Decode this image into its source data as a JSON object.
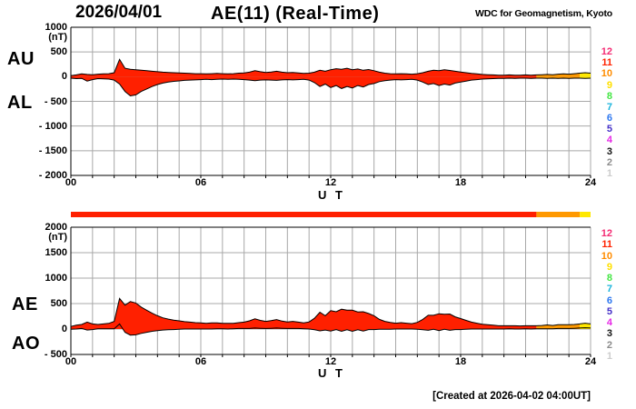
{
  "title": {
    "date": "2026/04/01",
    "main": "AE(11) (Real-Time)",
    "source": "WDC for Geomagnetism, Kyoto"
  },
  "footer": {
    "created": "[Created at 2026-04-02 04:00UT]"
  },
  "colors": {
    "grid": "#A8A8A8",
    "axis": "#000000",
    "fill_red": "#FF2000",
    "fill_orange": "#FF9900",
    "fill_yellow": "#FFE800"
  },
  "legend": {
    "items": [
      {
        "label": "12",
        "color": "#F42C74"
      },
      {
        "label": "11",
        "color": "#FF2200"
      },
      {
        "label": "10",
        "color": "#FF8C00"
      },
      {
        "label": "9",
        "color": "#FFE000"
      },
      {
        "label": "8",
        "color": "#44E644"
      },
      {
        "label": "7",
        "color": "#19B4DC"
      },
      {
        "label": "6",
        "color": "#2E78F0"
      },
      {
        "label": "5",
        "color": "#4632C8"
      },
      {
        "label": "4",
        "color": "#E628E6"
      },
      {
        "label": "3",
        "color": "#141414"
      },
      {
        "label": "2",
        "color": "#8C8C8C"
      },
      {
        "label": "1",
        "color": "#CDCDCD"
      }
    ]
  },
  "quality_bar": {
    "segments": [
      {
        "from": 0,
        "to": 21.5,
        "color": "#FF2000"
      },
      {
        "from": 21.5,
        "to": 23.5,
        "color": "#FF9900"
      },
      {
        "from": 23.5,
        "to": 24,
        "color": "#FFE800"
      }
    ]
  },
  "chart_data": [
    {
      "type": "area",
      "title": "AU / AL real-time indices",
      "panel_labels": [
        "AU",
        "AL"
      ],
      "unit": "(nT)",
      "xlabel": "U T",
      "ylim": [
        -2000,
        1000
      ],
      "xlim": [
        0,
        24
      ],
      "grid": true,
      "yticks": [
        {
          "v": 1000,
          "label": "1000"
        },
        {
          "v": 500,
          "label": "500"
        },
        {
          "v": 0,
          "label": "0"
        },
        {
          "v": -500,
          "label": "- 500"
        },
        {
          "v": -1000,
          "label": "- 1000"
        },
        {
          "v": -1500,
          "label": "- 1500"
        },
        {
          "v": -2000,
          "label": "- 2000"
        }
      ],
      "xticks": [
        {
          "v": 0,
          "label": "00"
        },
        {
          "v": 6,
          "label": "06"
        },
        {
          "v": 12,
          "label": "12"
        },
        {
          "v": 18,
          "label": "18"
        },
        {
          "v": 24,
          "label": "24"
        }
      ],
      "color_segments": [
        {
          "from": 0,
          "to": 21.5,
          "color": "#FF2000"
        },
        {
          "from": 21.5,
          "to": 23.5,
          "color": "#FF9900"
        },
        {
          "from": 23.5,
          "to": 24,
          "color": "#FFE800"
        }
      ],
      "x": [
        0,
        0.25,
        0.5,
        0.75,
        1,
        1.25,
        1.5,
        1.75,
        2,
        2.25,
        2.5,
        2.75,
        3,
        3.25,
        3.5,
        3.75,
        4,
        4.25,
        4.5,
        4.75,
        5,
        5.25,
        5.5,
        5.75,
        6,
        6.25,
        6.5,
        6.75,
        7,
        7.25,
        7.5,
        7.75,
        8,
        8.25,
        8.5,
        8.75,
        9,
        9.25,
        9.5,
        9.75,
        10,
        10.25,
        10.5,
        10.75,
        11,
        11.25,
        11.5,
        11.75,
        12,
        12.25,
        12.5,
        12.75,
        13,
        13.25,
        13.5,
        13.75,
        14,
        14.25,
        14.5,
        14.75,
        15,
        15.25,
        15.5,
        15.75,
        16,
        16.25,
        16.5,
        16.75,
        17,
        17.25,
        17.5,
        17.75,
        18,
        18.25,
        18.5,
        18.75,
        19,
        19.25,
        19.5,
        19.75,
        20,
        20.25,
        20.5,
        20.75,
        21,
        21.25,
        21.5,
        21.75,
        22,
        22.25,
        22.5,
        22.75,
        23,
        23.25,
        23.5,
        23.75,
        24
      ],
      "series": [
        {
          "name": "AU",
          "values": [
            20,
            35,
            55,
            45,
            40,
            50,
            55,
            60,
            80,
            350,
            170,
            150,
            140,
            130,
            120,
            110,
            100,
            90,
            85,
            80,
            75,
            70,
            65,
            60,
            60,
            55,
            60,
            65,
            60,
            55,
            60,
            70,
            75,
            90,
            120,
            100,
            85,
            95,
            110,
            90,
            80,
            85,
            75,
            65,
            70,
            90,
            130,
            110,
            140,
            160,
            150,
            170,
            140,
            155,
            130,
            145,
            120,
            90,
            70,
            60,
            55,
            60,
            55,
            50,
            60,
            80,
            110,
            130,
            120,
            140,
            125,
            110,
            95,
            80,
            65,
            55,
            45,
            40,
            35,
            30,
            30,
            35,
            30,
            30,
            35,
            30,
            35,
            40,
            45,
            40,
            50,
            55,
            50,
            60,
            70,
            80,
            70
          ]
        },
        {
          "name": "AL",
          "values": [
            -30,
            -40,
            -35,
            -90,
            -60,
            -40,
            -45,
            -50,
            -70,
            -150,
            -300,
            -390,
            -370,
            -300,
            -250,
            -200,
            -160,
            -130,
            -110,
            -95,
            -85,
            -75,
            -70,
            -65,
            -60,
            -55,
            -60,
            -55,
            -50,
            -55,
            -50,
            -55,
            -60,
            -70,
            -80,
            -70,
            -65,
            -70,
            -75,
            -65,
            -60,
            -65,
            -60,
            -55,
            -70,
            -120,
            -200,
            -150,
            -220,
            -180,
            -240,
            -200,
            -230,
            -180,
            -210,
            -160,
            -140,
            -100,
            -80,
            -70,
            -60,
            -65,
            -60,
            -55,
            -70,
            -110,
            -160,
            -140,
            -180,
            -150,
            -170,
            -130,
            -110,
            -90,
            -70,
            -60,
            -50,
            -45,
            -40,
            -35,
            -35,
            -30,
            -35,
            -30,
            -30,
            -35,
            -30,
            -30,
            -35,
            -30,
            -35,
            -30,
            -35,
            -30,
            -30,
            -35,
            -30
          ]
        }
      ]
    },
    {
      "type": "area",
      "title": "AE / AO real-time indices",
      "panel_labels": [
        "AE",
        "AO"
      ],
      "unit": "(nT)",
      "xlabel": "U T",
      "ylim": [
        -500,
        2000
      ],
      "xlim": [
        0,
        24
      ],
      "grid": true,
      "yticks": [
        {
          "v": 2000,
          "label": "2000"
        },
        {
          "v": 1500,
          "label": "1500"
        },
        {
          "v": 1000,
          "label": "1000"
        },
        {
          "v": 500,
          "label": "500"
        },
        {
          "v": 0,
          "label": "0"
        },
        {
          "v": -500,
          "label": "- 500"
        }
      ],
      "xticks": [
        {
          "v": 0,
          "label": "00"
        },
        {
          "v": 6,
          "label": "06"
        },
        {
          "v": 12,
          "label": "12"
        },
        {
          "v": 18,
          "label": "18"
        },
        {
          "v": 24,
          "label": "24"
        }
      ],
      "color_segments": [
        {
          "from": 0,
          "to": 21.5,
          "color": "#FF2000"
        },
        {
          "from": 21.5,
          "to": 23.5,
          "color": "#FF9900"
        },
        {
          "from": 23.5,
          "to": 24,
          "color": "#FFE800"
        }
      ],
      "x": [
        0,
        0.25,
        0.5,
        0.75,
        1,
        1.25,
        1.5,
        1.75,
        2,
        2.25,
        2.5,
        2.75,
        3,
        3.25,
        3.5,
        3.75,
        4,
        4.25,
        4.5,
        4.75,
        5,
        5.25,
        5.5,
        5.75,
        6,
        6.25,
        6.5,
        6.75,
        7,
        7.25,
        7.5,
        7.75,
        8,
        8.25,
        8.5,
        8.75,
        9,
        9.25,
        9.5,
        9.75,
        10,
        10.25,
        10.5,
        10.75,
        11,
        11.25,
        11.5,
        11.75,
        12,
        12.25,
        12.5,
        12.75,
        13,
        13.25,
        13.5,
        13.75,
        14,
        14.25,
        14.5,
        14.75,
        15,
        15.25,
        15.5,
        15.75,
        16,
        16.25,
        16.5,
        16.75,
        17,
        17.25,
        17.5,
        17.75,
        18,
        18.25,
        18.5,
        18.75,
        19,
        19.25,
        19.5,
        19.75,
        20,
        20.25,
        20.5,
        20.75,
        21,
        21.25,
        21.5,
        21.75,
        22,
        22.25,
        22.5,
        22.75,
        23,
        23.25,
        23.5,
        23.75,
        24
      ],
      "series": [
        {
          "name": "AE",
          "values": [
            50,
            75,
            90,
            135,
            100,
            90,
            100,
            110,
            150,
            600,
            470,
            540,
            510,
            430,
            370,
            310,
            260,
            220,
            195,
            175,
            160,
            145,
            135,
            125,
            120,
            110,
            120,
            120,
            110,
            110,
            110,
            125,
            135,
            160,
            200,
            170,
            150,
            165,
            185,
            155,
            140,
            150,
            135,
            120,
            140,
            210,
            330,
            260,
            360,
            340,
            390,
            370,
            370,
            335,
            340,
            305,
            260,
            190,
            150,
            130,
            115,
            125,
            115,
            105,
            130,
            190,
            270,
            270,
            300,
            290,
            295,
            240,
            205,
            170,
            135,
            115,
            95,
            85,
            75,
            65,
            65,
            65,
            65,
            60,
            65,
            65,
            65,
            70,
            80,
            70,
            85,
            85,
            85,
            90,
            100,
            115,
            100
          ]
        },
        {
          "name": "AO",
          "values": [
            -5,
            0,
            10,
            -20,
            -10,
            5,
            5,
            5,
            5,
            100,
            -65,
            -120,
            -115,
            -85,
            -65,
            -45,
            -30,
            -20,
            -15,
            -10,
            -5,
            0,
            0,
            0,
            0,
            0,
            0,
            5,
            5,
            0,
            5,
            10,
            10,
            10,
            20,
            15,
            10,
            15,
            20,
            15,
            10,
            10,
            10,
            5,
            0,
            -15,
            -35,
            -20,
            -40,
            -10,
            -45,
            -15,
            -45,
            -15,
            -40,
            -10,
            -10,
            -5,
            -5,
            -5,
            0,
            0,
            0,
            0,
            -5,
            -15,
            -25,
            -5,
            -30,
            -5,
            -25,
            -10,
            -10,
            -5,
            0,
            0,
            0,
            0,
            0,
            0,
            0,
            5,
            0,
            0,
            5,
            0,
            5,
            5,
            5,
            5,
            10,
            10,
            10,
            15,
            20,
            25,
            20
          ]
        }
      ]
    }
  ]
}
